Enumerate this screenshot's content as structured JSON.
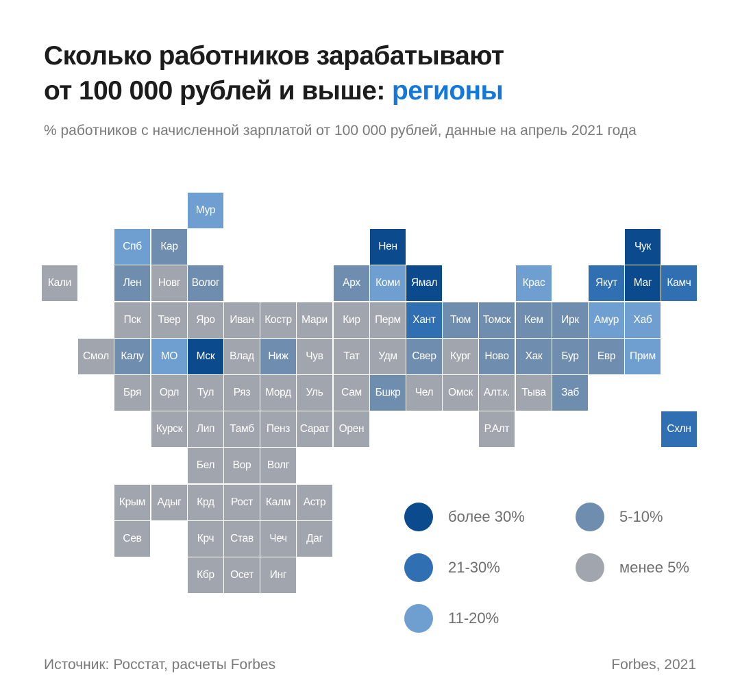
{
  "header": {
    "title_line1": "Сколько работников зарабатывают",
    "title_line2": "от 100 000 рублей и выше: ",
    "title_accent": "регионы",
    "subtitle": "% работников с начисленной зарплатой от 100 000 рублей, данные на апрель 2021 года"
  },
  "colors": {
    "accent": "#1478d8",
    "over30": "#0b4a8d",
    "21-30": "#2f6fb2",
    "11-20": "#6e9fd0",
    "5-10": "#6f8eaf",
    "under5": "#a1a6ae"
  },
  "chart_data": {
    "type": "heatmap",
    "subtype": "tile-grid-map",
    "title": "Сколько работников зарабатывают от 100 000 рублей и выше: регионы",
    "subtitle": "% работников с начисленной зарплатой от 100 000 рублей, данные на апрель 2021 года",
    "categories": [
      "over30",
      "21-30",
      "11-20",
      "5-10",
      "under5"
    ],
    "legend": [
      {
        "key": "over30",
        "label": "более 30%"
      },
      {
        "key": "21-30",
        "label": "21-30%"
      },
      {
        "key": "11-20",
        "label": "11-20%"
      },
      {
        "key": "5-10",
        "label": "5-10%"
      },
      {
        "key": "under5",
        "label": "менее 5%"
      }
    ],
    "legend_position": "bottom-right",
    "regions": [
      {
        "name": "Мур",
        "row": 0,
        "col": 4,
        "bin": "11-20"
      },
      {
        "name": "Спб",
        "row": 1,
        "col": 2,
        "bin": "11-20"
      },
      {
        "name": "Кар",
        "row": 1,
        "col": 3,
        "bin": "5-10"
      },
      {
        "name": "Нен",
        "row": 1,
        "col": 9,
        "bin": "over30"
      },
      {
        "name": "Чук",
        "row": 1,
        "col": 16,
        "bin": "over30"
      },
      {
        "name": "Кали",
        "row": 2,
        "col": 0,
        "bin": "under5"
      },
      {
        "name": "Лен",
        "row": 2,
        "col": 2,
        "bin": "5-10"
      },
      {
        "name": "Новг",
        "row": 2,
        "col": 3,
        "bin": "under5"
      },
      {
        "name": "Волог",
        "row": 2,
        "col": 4,
        "bin": "5-10"
      },
      {
        "name": "Арх",
        "row": 2,
        "col": 8,
        "bin": "5-10"
      },
      {
        "name": "Коми",
        "row": 2,
        "col": 9,
        "bin": "11-20"
      },
      {
        "name": "Ямал",
        "row": 2,
        "col": 10,
        "bin": "over30"
      },
      {
        "name": "Крас",
        "row": 2,
        "col": 13,
        "bin": "11-20"
      },
      {
        "name": "Якут",
        "row": 2,
        "col": 15,
        "bin": "21-30"
      },
      {
        "name": "Маг",
        "row": 2,
        "col": 16,
        "bin": "over30"
      },
      {
        "name": "Камч",
        "row": 2,
        "col": 17,
        "bin": "21-30"
      },
      {
        "name": "Пск",
        "row": 3,
        "col": 2,
        "bin": "under5"
      },
      {
        "name": "Твер",
        "row": 3,
        "col": 3,
        "bin": "under5"
      },
      {
        "name": "Яро",
        "row": 3,
        "col": 4,
        "bin": "under5"
      },
      {
        "name": "Иван",
        "row": 3,
        "col": 5,
        "bin": "under5"
      },
      {
        "name": "Костр",
        "row": 3,
        "col": 6,
        "bin": "under5"
      },
      {
        "name": "Мари",
        "row": 3,
        "col": 7,
        "bin": "under5"
      },
      {
        "name": "Кир",
        "row": 3,
        "col": 8,
        "bin": "under5"
      },
      {
        "name": "Перм",
        "row": 3,
        "col": 9,
        "bin": "under5"
      },
      {
        "name": "Хант",
        "row": 3,
        "col": 10,
        "bin": "21-30"
      },
      {
        "name": "Тюм",
        "row": 3,
        "col": 11,
        "bin": "5-10"
      },
      {
        "name": "Томск",
        "row": 3,
        "col": 12,
        "bin": "5-10"
      },
      {
        "name": "Кем",
        "row": 3,
        "col": 13,
        "bin": "5-10"
      },
      {
        "name": "Ирк",
        "row": 3,
        "col": 14,
        "bin": "5-10"
      },
      {
        "name": "Амур",
        "row": 3,
        "col": 15,
        "bin": "11-20"
      },
      {
        "name": "Хаб",
        "row": 3,
        "col": 16,
        "bin": "11-20"
      },
      {
        "name": "Смол",
        "row": 4,
        "col": 1,
        "bin": "under5"
      },
      {
        "name": "Калу",
        "row": 4,
        "col": 2,
        "bin": "5-10"
      },
      {
        "name": "МО",
        "row": 4,
        "col": 3,
        "bin": "11-20"
      },
      {
        "name": "Мск",
        "row": 4,
        "col": 4,
        "bin": "over30"
      },
      {
        "name": "Влад",
        "row": 4,
        "col": 5,
        "bin": "under5"
      },
      {
        "name": "Ниж",
        "row": 4,
        "col": 6,
        "bin": "5-10"
      },
      {
        "name": "Чув",
        "row": 4,
        "col": 7,
        "bin": "under5"
      },
      {
        "name": "Тат",
        "row": 4,
        "col": 8,
        "bin": "under5"
      },
      {
        "name": "Удм",
        "row": 4,
        "col": 9,
        "bin": "under5"
      },
      {
        "name": "Свер",
        "row": 4,
        "col": 10,
        "bin": "5-10"
      },
      {
        "name": "Кург",
        "row": 4,
        "col": 11,
        "bin": "under5"
      },
      {
        "name": "Ново",
        "row": 4,
        "col": 12,
        "bin": "5-10"
      },
      {
        "name": "Хак",
        "row": 4,
        "col": 13,
        "bin": "5-10"
      },
      {
        "name": "Бур",
        "row": 4,
        "col": 14,
        "bin": "5-10"
      },
      {
        "name": "Евр",
        "row": 4,
        "col": 15,
        "bin": "5-10"
      },
      {
        "name": "Прим",
        "row": 4,
        "col": 16,
        "bin": "11-20"
      },
      {
        "name": "Бря",
        "row": 5,
        "col": 2,
        "bin": "under5"
      },
      {
        "name": "Орл",
        "row": 5,
        "col": 3,
        "bin": "under5"
      },
      {
        "name": "Тул",
        "row": 5,
        "col": 4,
        "bin": "under5"
      },
      {
        "name": "Ряз",
        "row": 5,
        "col": 5,
        "bin": "under5"
      },
      {
        "name": "Морд",
        "row": 5,
        "col": 6,
        "bin": "under5"
      },
      {
        "name": "Уль",
        "row": 5,
        "col": 7,
        "bin": "under5"
      },
      {
        "name": "Сам",
        "row": 5,
        "col": 8,
        "bin": "under5"
      },
      {
        "name": "Бшкр",
        "row": 5,
        "col": 9,
        "bin": "5-10"
      },
      {
        "name": "Чел",
        "row": 5,
        "col": 10,
        "bin": "under5"
      },
      {
        "name": "Омск",
        "row": 5,
        "col": 11,
        "bin": "under5"
      },
      {
        "name": "Алт.к.",
        "row": 5,
        "col": 12,
        "bin": "under5"
      },
      {
        "name": "Тыва",
        "row": 5,
        "col": 13,
        "bin": "under5"
      },
      {
        "name": "Заб",
        "row": 5,
        "col": 14,
        "bin": "5-10"
      },
      {
        "name": "Курск",
        "row": 6,
        "col": 3,
        "bin": "under5"
      },
      {
        "name": "Лип",
        "row": 6,
        "col": 4,
        "bin": "under5"
      },
      {
        "name": "Тамб",
        "row": 6,
        "col": 5,
        "bin": "under5"
      },
      {
        "name": "Пенз",
        "row": 6,
        "col": 6,
        "bin": "under5"
      },
      {
        "name": "Сарат",
        "row": 6,
        "col": 7,
        "bin": "under5"
      },
      {
        "name": "Орен",
        "row": 6,
        "col": 8,
        "bin": "under5"
      },
      {
        "name": "Р.Алт",
        "row": 6,
        "col": 12,
        "bin": "under5"
      },
      {
        "name": "Схлн",
        "row": 6,
        "col": 17,
        "bin": "21-30"
      },
      {
        "name": "Бел",
        "row": 7,
        "col": 4,
        "bin": "under5"
      },
      {
        "name": "Вор",
        "row": 7,
        "col": 5,
        "bin": "under5"
      },
      {
        "name": "Волг",
        "row": 7,
        "col": 6,
        "bin": "under5"
      },
      {
        "name": "Крым",
        "row": 8,
        "col": 2,
        "bin": "under5"
      },
      {
        "name": "Адыг",
        "row": 8,
        "col": 3,
        "bin": "under5"
      },
      {
        "name": "Крд",
        "row": 8,
        "col": 4,
        "bin": "under5"
      },
      {
        "name": "Рост",
        "row": 8,
        "col": 5,
        "bin": "under5"
      },
      {
        "name": "Калм",
        "row": 8,
        "col": 6,
        "bin": "under5"
      },
      {
        "name": "Астр",
        "row": 8,
        "col": 7,
        "bin": "under5"
      },
      {
        "name": "Сев",
        "row": 9,
        "col": 2,
        "bin": "under5"
      },
      {
        "name": "Крч",
        "row": 9,
        "col": 4,
        "bin": "under5"
      },
      {
        "name": "Став",
        "row": 9,
        "col": 5,
        "bin": "under5"
      },
      {
        "name": "Чеч",
        "row": 9,
        "col": 6,
        "bin": "under5"
      },
      {
        "name": "Даг",
        "row": 9,
        "col": 7,
        "bin": "under5"
      },
      {
        "name": "Кбр",
        "row": 10,
        "col": 4,
        "bin": "under5"
      },
      {
        "name": "Осет",
        "row": 10,
        "col": 5,
        "bin": "under5"
      },
      {
        "name": "Инг",
        "row": 10,
        "col": 6,
        "bin": "under5"
      }
    ]
  },
  "footer": {
    "source": "Источник: Росстат, расчеты Forbes",
    "credit": "Forbes, 2021"
  }
}
